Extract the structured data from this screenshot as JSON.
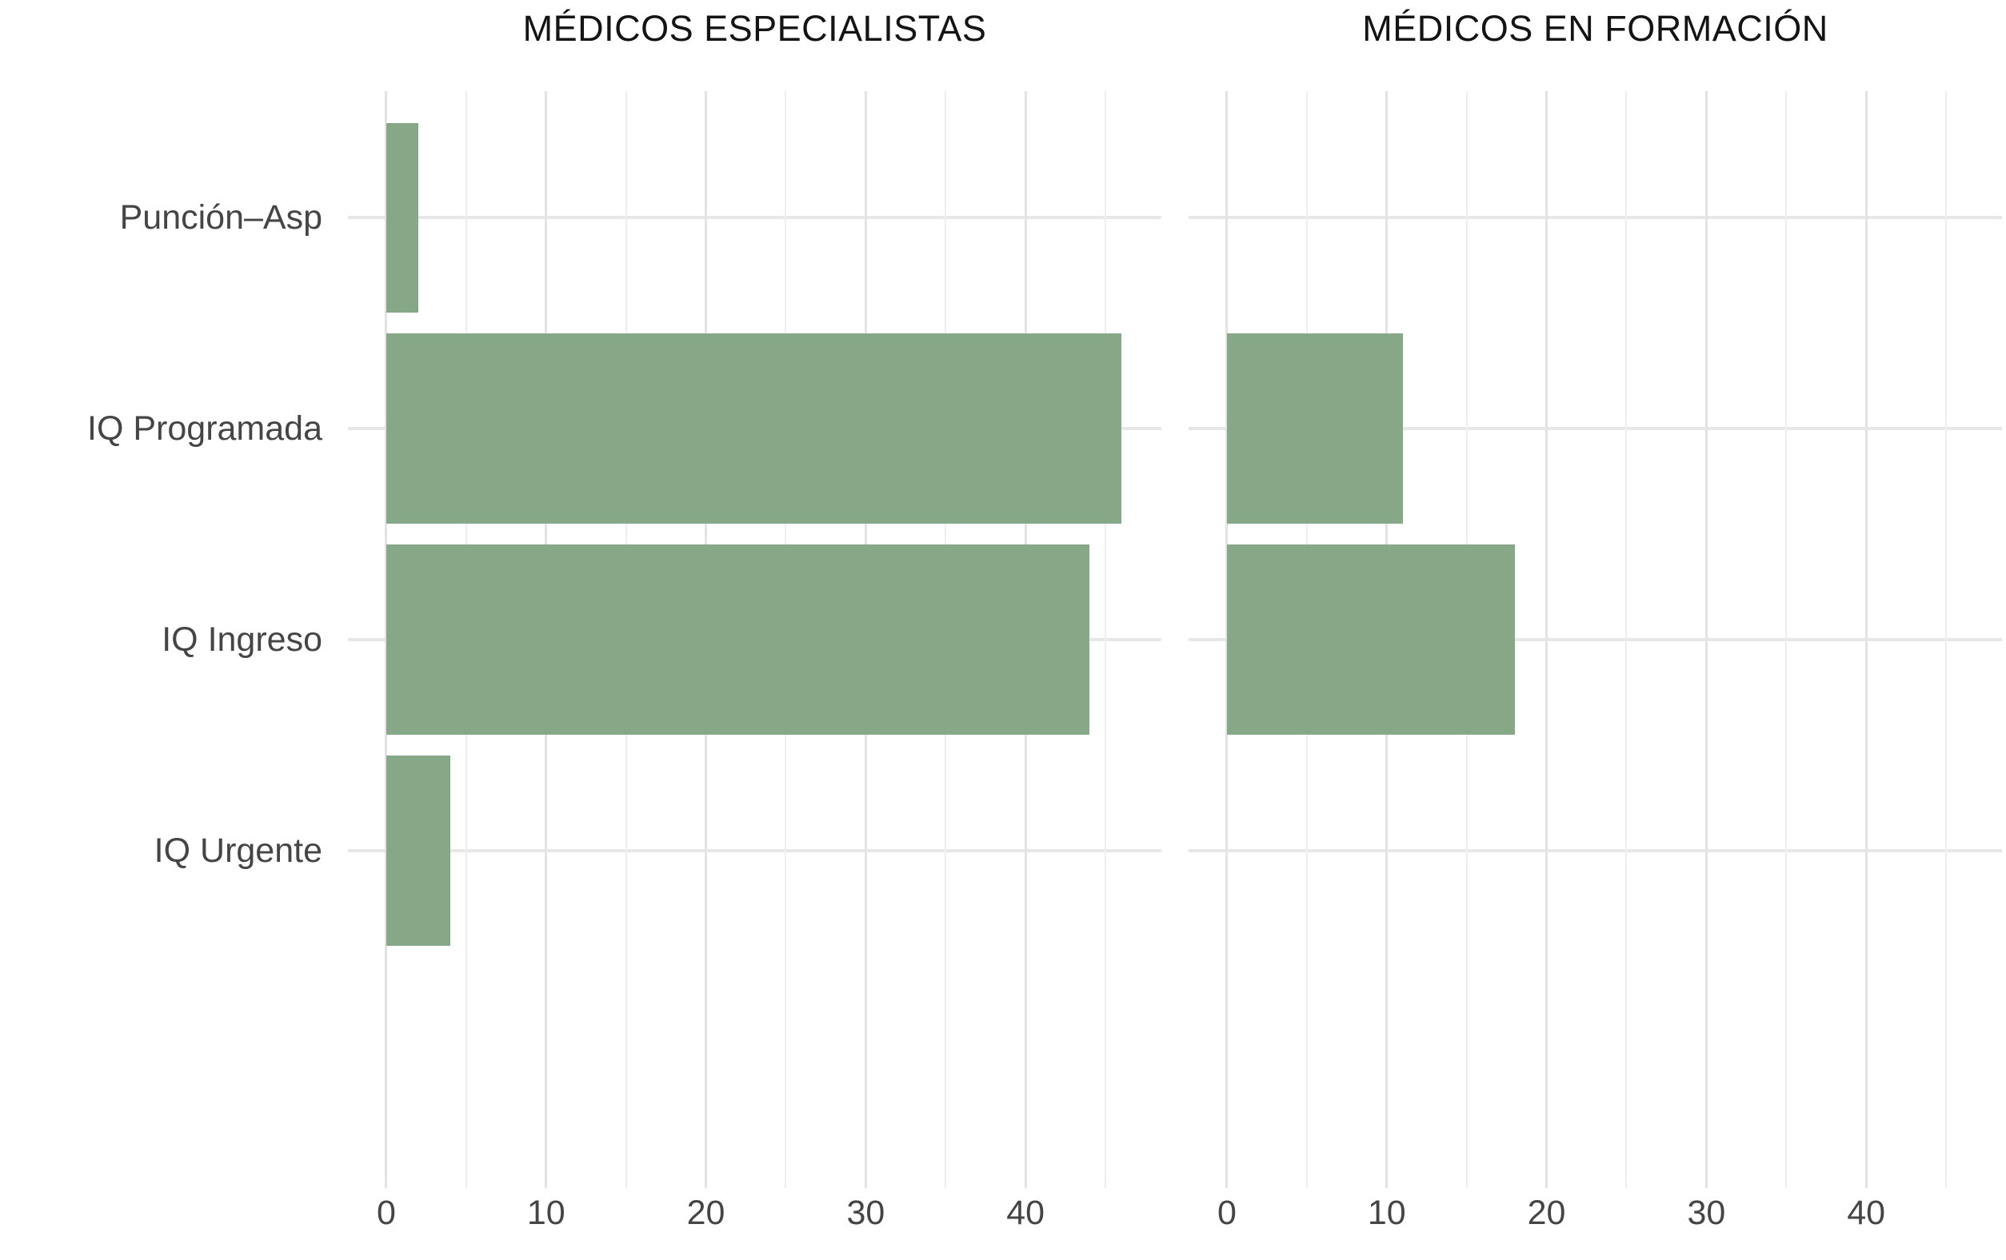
{
  "chart_data": {
    "type": "bar",
    "orientation": "horizontal",
    "categories": [
      "Punción–Asp",
      "IQ Programada",
      "IQ Ingreso",
      "IQ Urgente"
    ],
    "facets": [
      {
        "title": "MÉDICOS ESPECIALISTAS",
        "values": [
          2,
          46,
          44,
          4
        ]
      },
      {
        "title": "MÉDICOS EN FORMACIÓN",
        "values": [
          0,
          11,
          18,
          0
        ]
      }
    ],
    "x_ticks": [
      0,
      10,
      20,
      30,
      40
    ],
    "x_minor_ticks": [
      5,
      15,
      25,
      35,
      45
    ],
    "xlim": [
      -2.4,
      48.5
    ],
    "grid": "on",
    "legend": "none",
    "xlabel": "",
    "ylabel": "",
    "colors": {
      "bar": "#86a886",
      "grid_major": "#e3e3e3",
      "grid_minor": "#eeeeee",
      "hgrid": "#e7e7e7",
      "text": "#454545",
      "title": "#141414",
      "background": "#ffffff"
    }
  }
}
